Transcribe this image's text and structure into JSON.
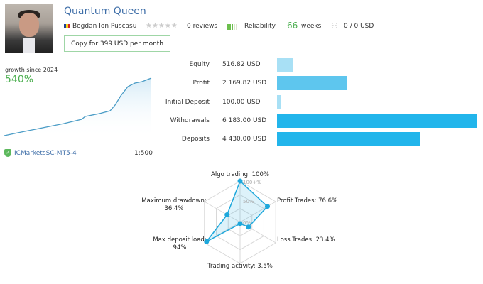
{
  "header": {
    "title": "Quantum Queen",
    "author": "Bogdan Ion Puscasu",
    "reviews": "0 reviews",
    "reliability_label": "Reliability",
    "reliability_level": 3,
    "reliability_max": 5,
    "weeks_value": "66",
    "weeks_label": "weeks",
    "subscribers": "0 / 0 USD",
    "copy_button": "Copy for 399 USD per month",
    "stars": "★★★★★",
    "rating": 0
  },
  "growth": {
    "label": "growth since 2024",
    "value": "540%",
    "broker": "ICMarketsSC-MT5-4",
    "leverage": "1:500"
  },
  "colors": {
    "title": "#3e6ea8",
    "green": "#4caf50",
    "bar_light": "#a8e0f5",
    "bar_mid": "#5ec6ee",
    "bar_dark": "#22b5eb",
    "radar": "#1ea8dc"
  },
  "stats": [
    {
      "label": "Equity",
      "value": "516.82 USD",
      "amount": 516.82,
      "color": "#a8e0f5"
    },
    {
      "label": "Profit",
      "value": "2 169.82 USD",
      "amount": 2169.82,
      "color": "#5ec6ee"
    },
    {
      "label": "Initial Deposit",
      "value": "100.00 USD",
      "amount": 100,
      "color": "#a8e0f5"
    },
    {
      "label": "Withdrawals",
      "value": "6 183.00 USD",
      "amount": 6183,
      "color": "#22b5eb"
    },
    {
      "label": "Deposits",
      "value": "4 430.00 USD",
      "amount": 4430,
      "color": "#22b5eb"
    }
  ],
  "chart_data": {
    "type": "radar",
    "axis_ticks": [
      "100+%",
      "50%",
      "0%"
    ],
    "axes": [
      {
        "name": "Algo trading",
        "label": "Algo trading: 100%",
        "value": 100
      },
      {
        "name": "Profit Trades",
        "label": "Profit Trades: 76.6%",
        "value": 76.6
      },
      {
        "name": "Loss Trades",
        "label": "Loss Trades: 23.4%",
        "value": 23.4
      },
      {
        "name": "Trading activity",
        "label": "Trading activity: 3.5%",
        "value": 3.5
      },
      {
        "name": "Max deposit load",
        "label": [
          "Max deposit load:",
          "94%"
        ],
        "value": 94
      },
      {
        "name": "Maximum drawdown",
        "label": [
          "Maximum drawdown:",
          "36.4%"
        ],
        "value": 36.4
      }
    ]
  }
}
